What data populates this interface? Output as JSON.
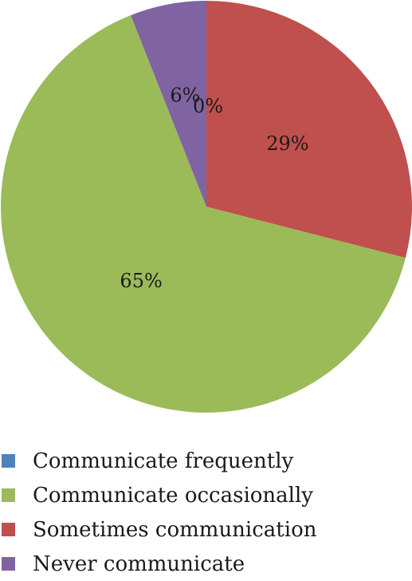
{
  "chart_data": {
    "type": "pie",
    "categories": [
      "Communicate frequently",
      "Communicate occasionally",
      "Sometimes communication",
      "Never communicate"
    ],
    "values": [
      0,
      65,
      29,
      6
    ],
    "value_labels": [
      "0%",
      "65%",
      "29%",
      "6%"
    ],
    "unit": "%",
    "colors": [
      "#4f81bd",
      "#9bbb59",
      "#c0504d",
      "#8064a2"
    ],
    "slice_order_clockwise_from_top": [
      "Communicate frequently",
      "Sometimes communication",
      "Communicate occasionally",
      "Never communicate"
    ],
    "legend_placement": "bottom",
    "title": ""
  }
}
